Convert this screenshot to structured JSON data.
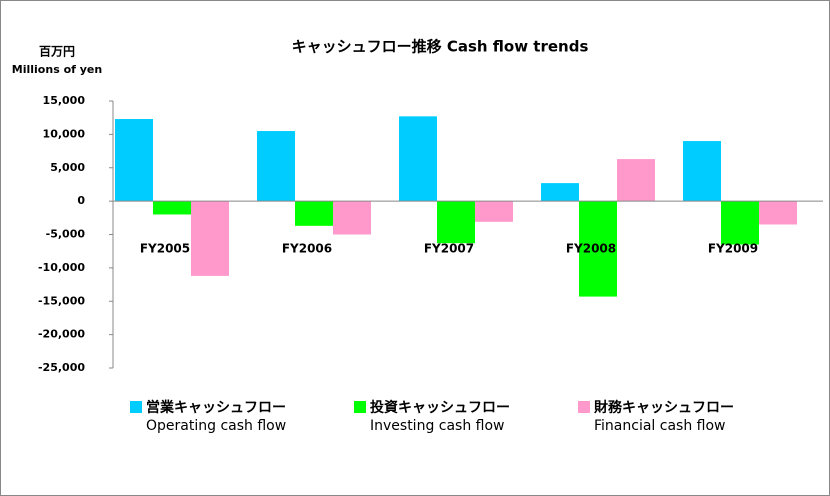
{
  "chart_data": {
    "type": "bar",
    "title": "キャッシュフロー推移 Cash flow trends",
    "y_label": "百万円",
    "y_label_en": "Millions of yen",
    "categories": [
      "FY2005",
      "FY2006",
      "FY2007",
      "FY2008",
      "FY2009"
    ],
    "series": [
      {
        "name": "営業キャッシュフロー",
        "name_en": "Operating cash flow",
        "color": "#00ccff",
        "values": [
          12300,
          10500,
          12700,
          2700,
          9000
        ]
      },
      {
        "name": "投資キャッシュフロー",
        "name_en": "Investing cash flow",
        "color": "#00ff00",
        "values": [
          -2000,
          -3700,
          -6300,
          -14300,
          -6500
        ]
      },
      {
        "name": "財務キャッシュフロー",
        "name_en": "Financial cash flow",
        "color": "#ff99cc",
        "values": [
          -11200,
          -5000,
          -3100,
          6300,
          -3500
        ]
      }
    ],
    "ylim": [
      -25000,
      15000
    ],
    "yticks": [
      {
        "value": -25000,
        "label": "-25,000"
      },
      {
        "value": -20000,
        "label": "-20,000"
      },
      {
        "value": -15000,
        "label": "-15,000"
      },
      {
        "value": -10000,
        "label": "-10,000"
      },
      {
        "value": -5000,
        "label": "-5,000"
      },
      0,
      {
        "value": 5000,
        "label": "5,000"
      },
      {
        "value": 10000,
        "label": "10,000"
      },
      {
        "value": 15000,
        "label": "15,000"
      }
    ],
    "legend": "bottom"
  }
}
